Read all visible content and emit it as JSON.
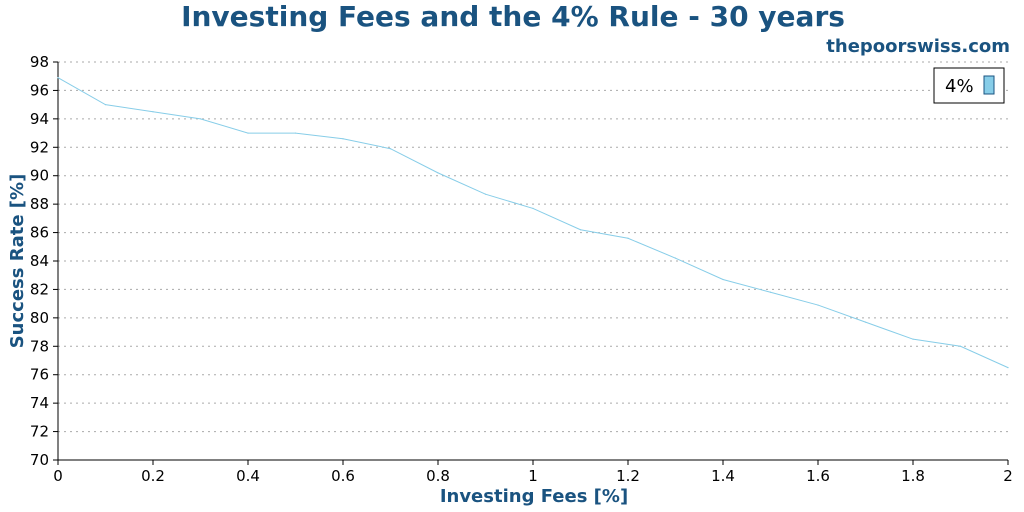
{
  "chart_data": {
    "type": "line",
    "title": "Investing Fees and the 4% Rule - 30 years",
    "watermark": "thepoorswiss.com",
    "xlabel": "Investing Fees [%]",
    "ylabel": "Success Rate [%]",
    "xlim": [
      0,
      2
    ],
    "ylim": [
      70,
      98
    ],
    "x_ticks": [
      "0",
      "0.2",
      "0.4",
      "0.6",
      "0.8",
      "1",
      "1.2",
      "1.4",
      "1.6",
      "1.8",
      "2"
    ],
    "y_ticks": [
      "70",
      "72",
      "74",
      "76",
      "78",
      "80",
      "82",
      "84",
      "86",
      "88",
      "90",
      "92",
      "94",
      "96",
      "98"
    ],
    "grid": "horizontal dotted",
    "legend_position": "top-right",
    "series": [
      {
        "name": "4%",
        "color": "#87cde8",
        "x": [
          0,
          0.1,
          0.2,
          0.3,
          0.4,
          0.5,
          0.6,
          0.7,
          0.8,
          0.9,
          1.0,
          1.1,
          1.2,
          1.3,
          1.4,
          1.5,
          1.6,
          1.7,
          1.8,
          1.9,
          2.0
        ],
        "y": [
          96.9,
          95.0,
          94.5,
          94.0,
          93.0,
          93.0,
          92.6,
          91.9,
          90.2,
          88.7,
          87.7,
          86.2,
          85.6,
          84.2,
          82.7,
          81.8,
          80.9,
          79.7,
          78.5,
          78.0,
          76.5
        ]
      }
    ]
  }
}
